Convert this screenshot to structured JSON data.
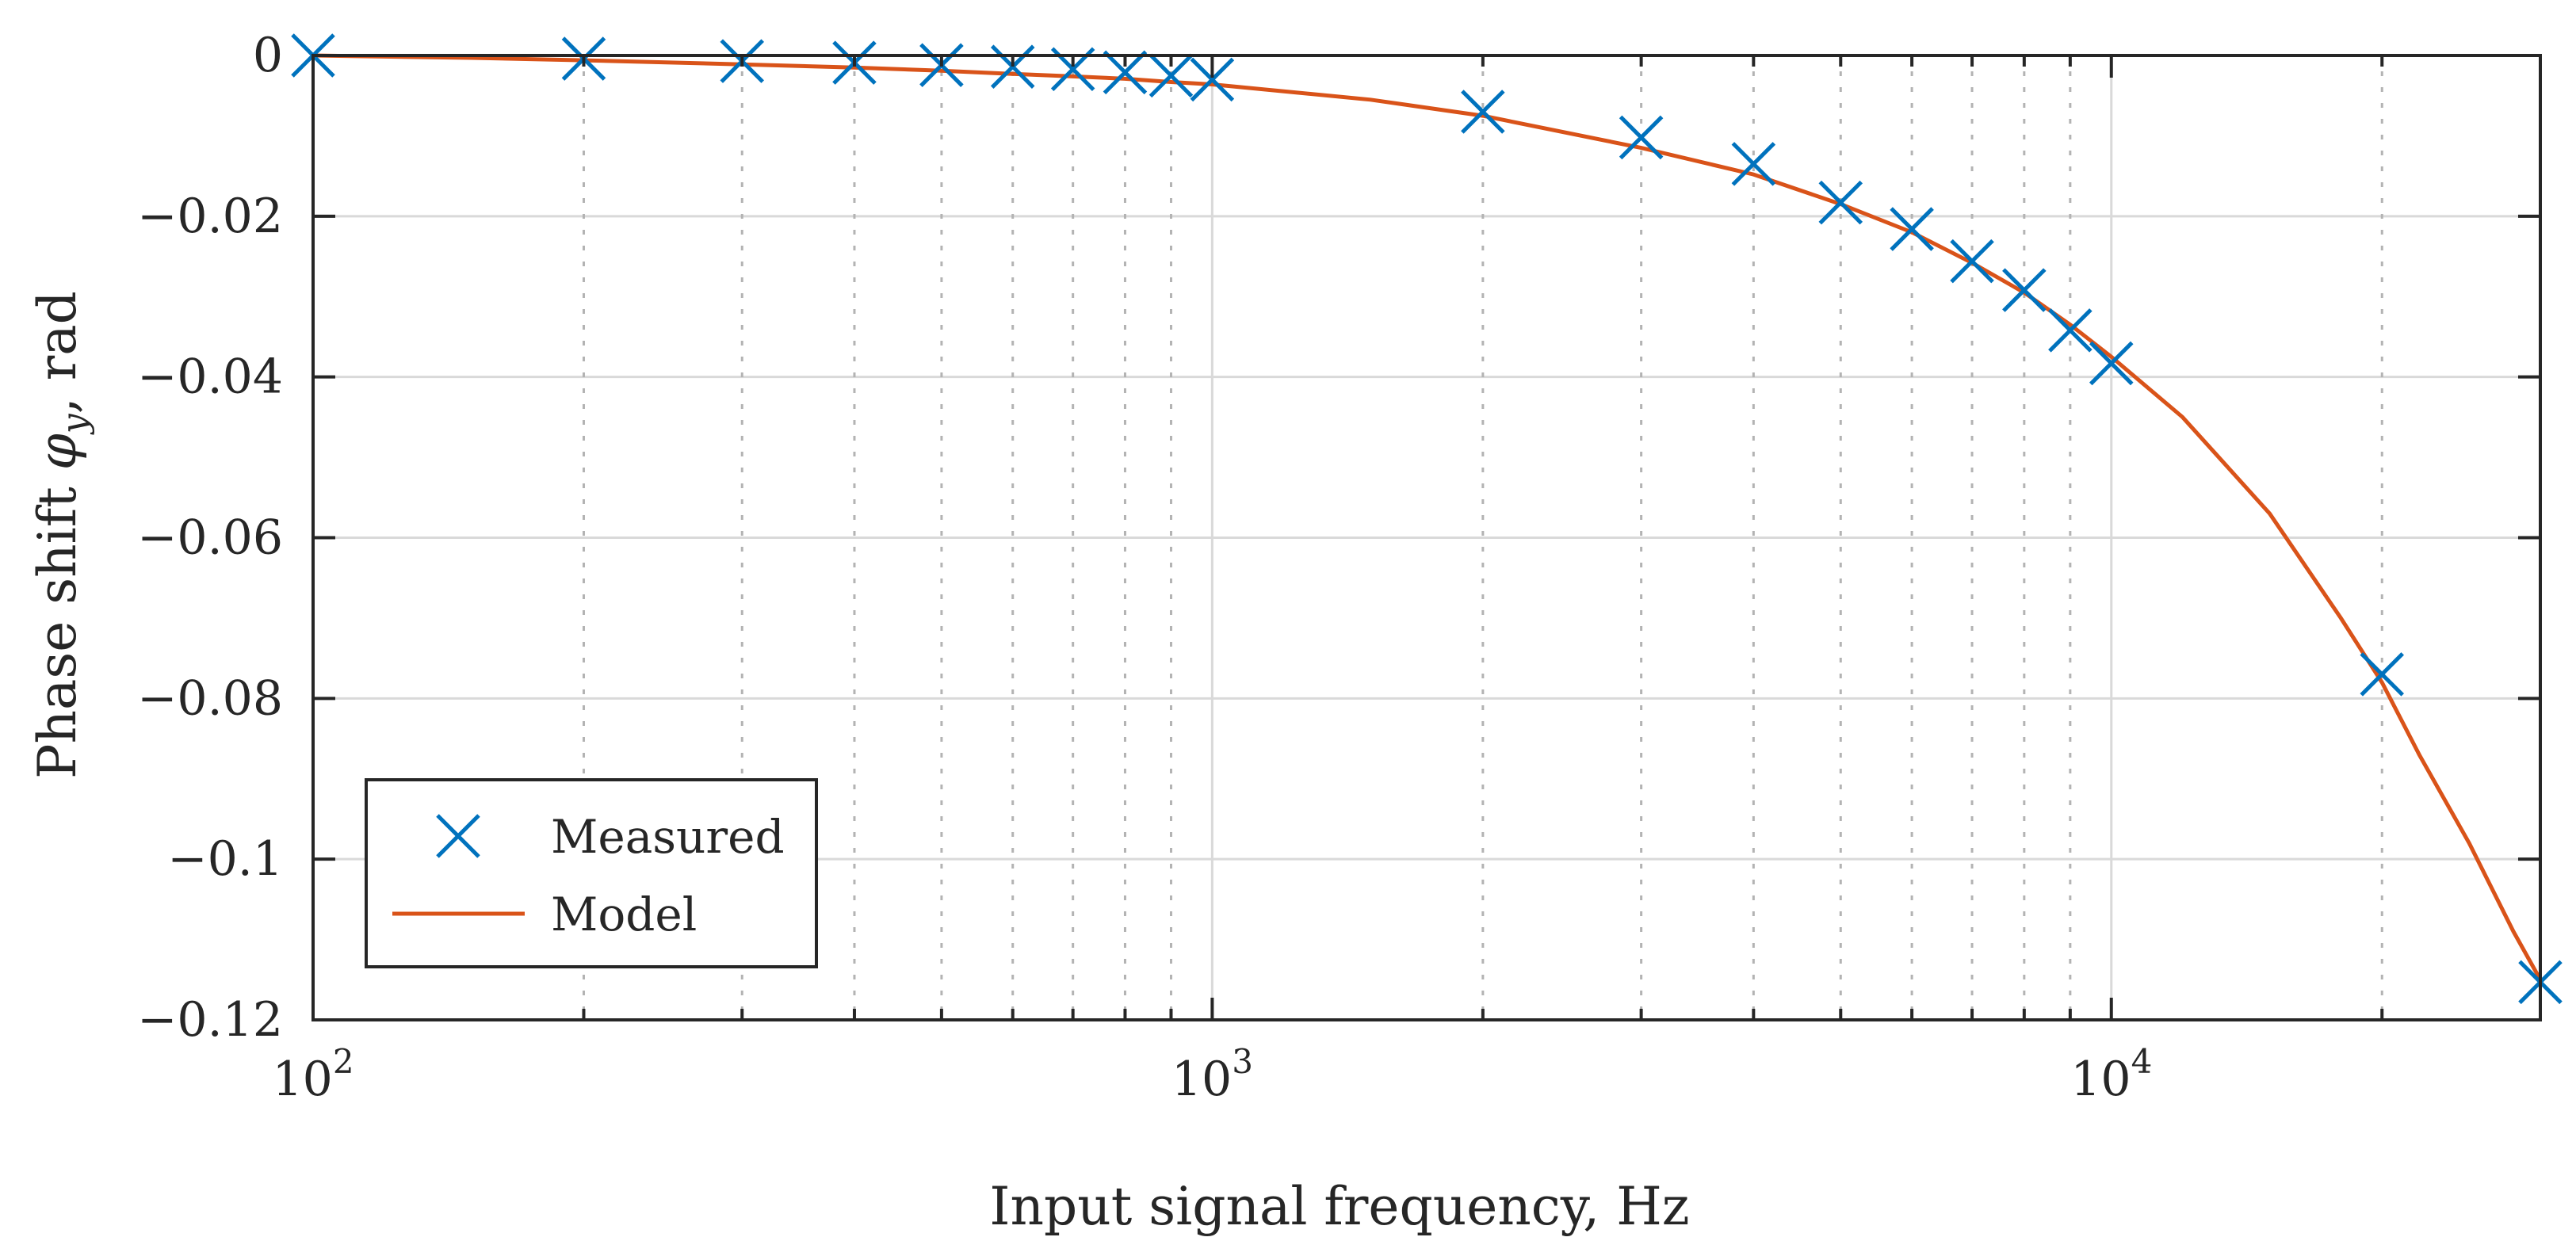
{
  "chart_data": {
    "type": "scatter",
    "x_scale": "log",
    "xlabel": "Input signal frequency, Hz",
    "ylabel_prefix": "Phase shift ",
    "ylabel_symbol": "φ",
    "ylabel_subscript": "y",
    "ylabel_suffix": ", rad",
    "xlim": [
      100,
      30000
    ],
    "ylim": [
      -0.12,
      0
    ],
    "x_ticks": [
      {
        "value": 100,
        "base": "10",
        "exp": "2"
      },
      {
        "value": 1000,
        "base": "10",
        "exp": "3"
      },
      {
        "value": 10000,
        "base": "10",
        "exp": "4"
      }
    ],
    "y_ticks": [
      {
        "value": 0,
        "label": "0"
      },
      {
        "value": -0.02,
        "label": "−0.02"
      },
      {
        "value": -0.04,
        "label": "−0.04"
      },
      {
        "value": -0.06,
        "label": "−0.06"
      },
      {
        "value": -0.08,
        "label": "−0.08"
      },
      {
        "value": -0.1,
        "label": "−0.1"
      },
      {
        "value": -0.12,
        "label": "−0.12"
      }
    ],
    "minor_x_ticks": [
      200,
      300,
      400,
      500,
      600,
      700,
      800,
      900,
      2000,
      3000,
      4000,
      5000,
      6000,
      7000,
      8000,
      9000,
      20000
    ],
    "grid": true,
    "legend_position": "bottom-left",
    "series": [
      {
        "name": "Measured",
        "kind": "marker",
        "marker": "x",
        "color": "#0072bd",
        "x": [
          100,
          200,
          300,
          400,
          500,
          600,
          700,
          800,
          900,
          1000,
          2000,
          3000,
          4000,
          5000,
          6000,
          7000,
          8000,
          9000,
          10000,
          20000,
          30000
        ],
        "y": [
          0,
          -0.0004,
          -0.0007,
          -0.0009,
          -0.0012,
          -0.0014,
          -0.0017,
          -0.0021,
          -0.0025,
          -0.003,
          -0.007,
          -0.0102,
          -0.0135,
          -0.0183,
          -0.0216,
          -0.0256,
          -0.0292,
          -0.0342,
          -0.0383,
          -0.077,
          -0.1153
        ]
      },
      {
        "name": "Model",
        "kind": "line",
        "color": "#d95319",
        "x": [
          100,
          150,
          200,
          300,
          400,
          500,
          600,
          700,
          800,
          900,
          1000,
          1500,
          2000,
          3000,
          4000,
          5000,
          6000,
          7000,
          8000,
          9000,
          10000,
          12000,
          15000,
          18000,
          20000,
          22000,
          25000,
          28000,
          30000
        ],
        "y": [
          0,
          -0.0003,
          -0.0006,
          -0.0011,
          -0.0015,
          -0.0019,
          -0.0023,
          -0.0026,
          -0.0029,
          -0.0033,
          -0.0036,
          -0.0055,
          -0.0075,
          -0.0115,
          -0.0148,
          -0.0185,
          -0.022,
          -0.0258,
          -0.0295,
          -0.0335,
          -0.0375,
          -0.045,
          -0.057,
          -0.07,
          -0.078,
          -0.087,
          -0.098,
          -0.109,
          -0.115
        ]
      }
    ]
  }
}
